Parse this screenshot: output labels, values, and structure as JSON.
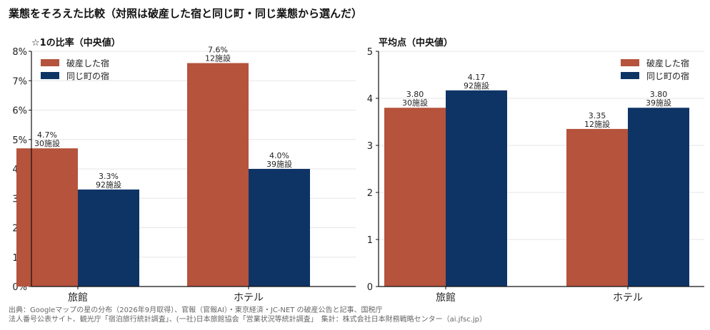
{
  "title": "業態をそろえた比較（対照は破産した宿と同じ町・同じ業態から選んだ）",
  "colors": {
    "bankrupt": "#b5533c",
    "control": "#0e3466",
    "grid": "#e6e6e6",
    "axis": "#111111"
  },
  "chart_data": [
    {
      "type": "bar",
      "title": "☆1の比率（中央値）",
      "categories": [
        "旅館",
        "ホテル"
      ],
      "ylim": [
        0,
        8
      ],
      "yticks": [
        "0%",
        "1%",
        "2%",
        "3%",
        "4%",
        "5%",
        "6%",
        "7%",
        "8%"
      ],
      "legend_position": "top-left",
      "grid": true,
      "series": [
        {
          "name": "破産した宿",
          "values": [
            4.7,
            7.6
          ],
          "labels": [
            "4.7%",
            "7.6%"
          ],
          "counts": [
            "30施設",
            "12施設"
          ]
        },
        {
          "name": "同じ町の宿",
          "values": [
            3.3,
            4.0
          ],
          "labels": [
            "3.3%",
            "4.0%"
          ],
          "counts": [
            "92施設",
            "39施設"
          ]
        }
      ]
    },
    {
      "type": "bar",
      "title": "平均点（中央値）",
      "categories": [
        "旅館",
        "ホテル"
      ],
      "ylim": [
        0,
        5
      ],
      "yticks": [
        "0",
        "1",
        "2",
        "3",
        "4",
        "5"
      ],
      "legend_position": "top-right",
      "grid": true,
      "series": [
        {
          "name": "破産した宿",
          "values": [
            3.8,
            3.35
          ],
          "labels": [
            "3.80",
            "3.35"
          ],
          "counts": [
            "30施設",
            "12施設"
          ]
        },
        {
          "name": "同じ町の宿",
          "values": [
            4.17,
            3.8
          ],
          "labels": [
            "4.17",
            "3.80"
          ],
          "counts": [
            "92施設",
            "39施設"
          ]
        }
      ]
    }
  ],
  "source": {
    "line1": "出典：Googleマップの星の分布（2026年9月取得）、官報（官報AI）・東京経済・JC-NET の破産公告と記事、国税庁",
    "line2": "法人番号公表サイト、観光庁「宿泊旅行統計調査」、(一社)日本旅館協会「営業状況等統計調査」　集計：株式会社日本財務戦略センター（ai.jfsc.jp）"
  }
}
